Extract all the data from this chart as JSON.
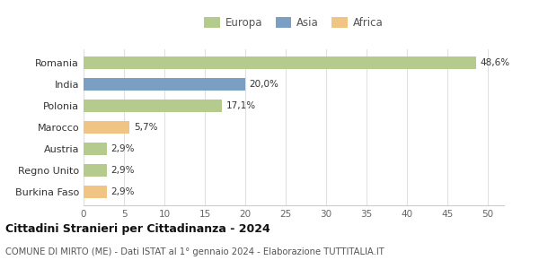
{
  "categories": [
    "Burkina Faso",
    "Regno Unito",
    "Austria",
    "Marocco",
    "Polonia",
    "India",
    "Romania"
  ],
  "values": [
    2.9,
    2.9,
    2.9,
    5.7,
    17.1,
    20.0,
    48.6
  ],
  "labels": [
    "2,9%",
    "2,9%",
    "2,9%",
    "5,7%",
    "17,1%",
    "20,0%",
    "48,6%"
  ],
  "colors": [
    "#f0c485",
    "#b5ca8d",
    "#b5ca8d",
    "#f0c485",
    "#b5ca8d",
    "#7a9fc2",
    "#b5ca8d"
  ],
  "legend": [
    {
      "label": "Europa",
      "color": "#b5ca8d"
    },
    {
      "label": "Asia",
      "color": "#7a9fc2"
    },
    {
      "label": "Africa",
      "color": "#f0c485"
    }
  ],
  "xlim": [
    0,
    52
  ],
  "xticks": [
    0,
    5,
    10,
    15,
    20,
    25,
    30,
    35,
    40,
    45,
    50
  ],
  "title": "Cittadini Stranieri per Cittadinanza - 2024",
  "subtitle": "COMUNE DI MIRTO (ME) - Dati ISTAT al 1° gennaio 2024 - Elaborazione TUTTITALIA.IT",
  "background_color": "#ffffff",
  "grid_color": "#e0e0e0",
  "bar_height": 0.6
}
